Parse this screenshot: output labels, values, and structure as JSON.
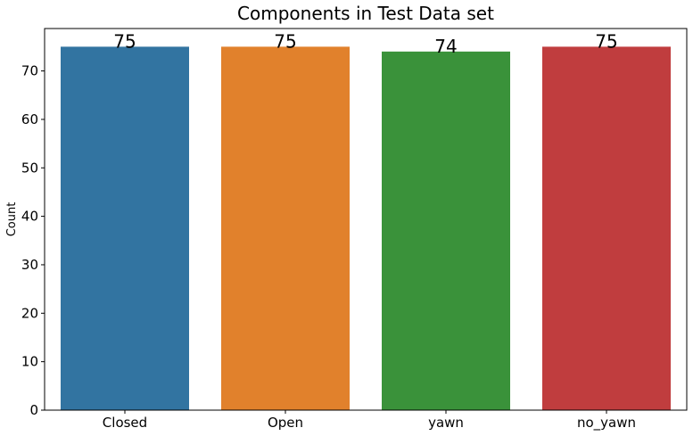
{
  "chart_data": {
    "type": "bar",
    "title": "Components in Test Data set",
    "xlabel": "",
    "ylabel": "Count",
    "categories": [
      "Closed",
      "Open",
      "yawn",
      "no_yawn"
    ],
    "values": [
      75,
      75,
      74,
      75
    ],
    "data_labels": [
      "75",
      "75",
      "74",
      "75"
    ],
    "colors": [
      "#3274a1",
      "#e1812c",
      "#3a923a",
      "#c03d3e"
    ],
    "ylim": [
      0,
      78.75
    ],
    "yticks": [
      0,
      10,
      20,
      30,
      40,
      50,
      60,
      70
    ],
    "grid": false,
    "legend": "none"
  }
}
